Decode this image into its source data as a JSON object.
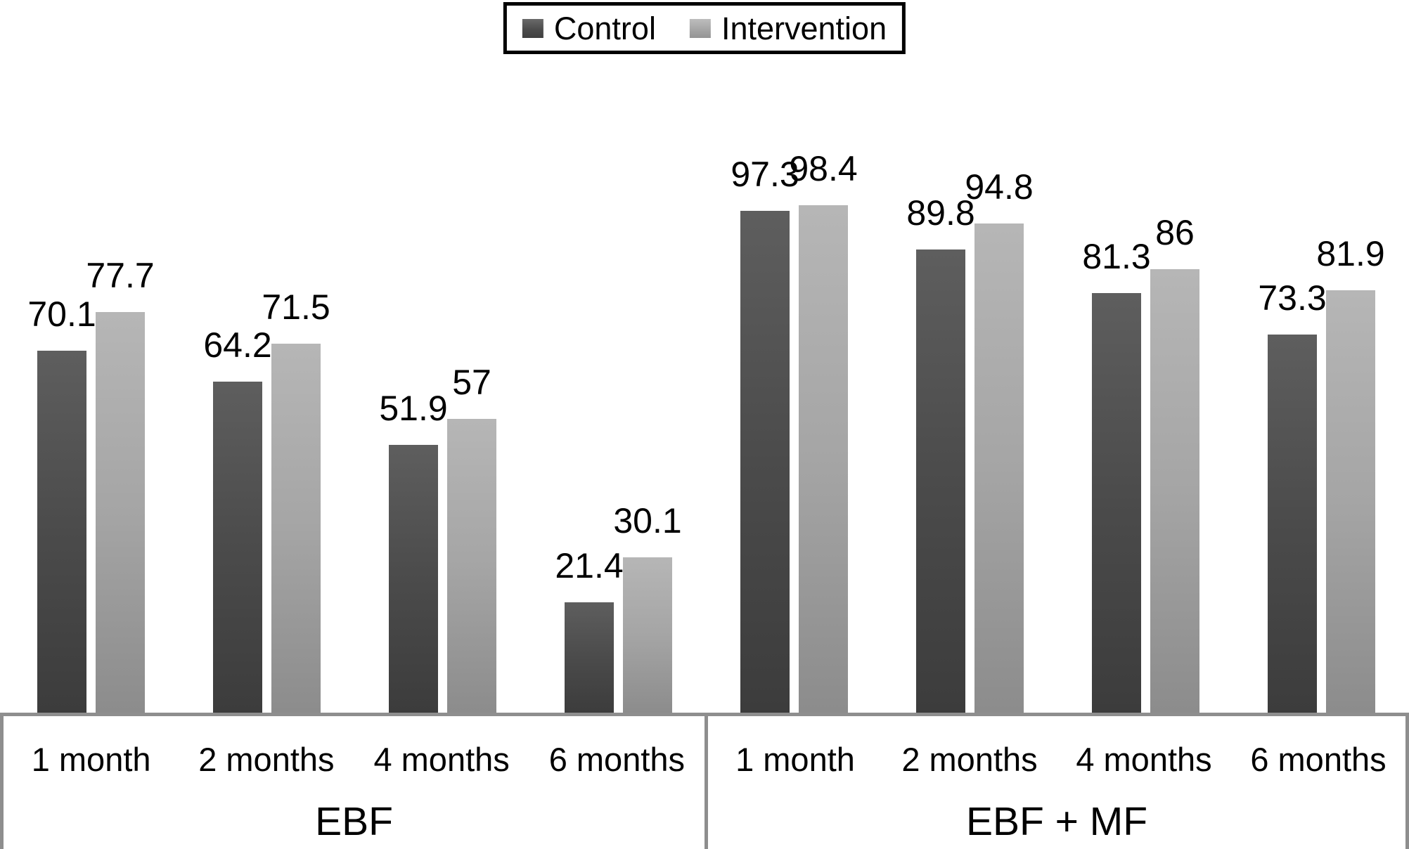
{
  "legend": {
    "position": "top-center",
    "items": [
      {
        "label": "Control",
        "series": "control",
        "swatch_color": "#4c4c4c"
      },
      {
        "label": "Intervention",
        "series": "intervention",
        "swatch_color": "#a6a6a6"
      }
    ]
  },
  "chart_data": {
    "type": "bar",
    "title": "",
    "xlabel": "",
    "ylabel": "",
    "ylim": [
      0,
      110
    ],
    "grid": false,
    "y_axis_visible": false,
    "value_labels": true,
    "legend_position": "top",
    "colors": {
      "control": "#4c4c4c",
      "intervention": "#a6a6a6"
    },
    "groups": [
      {
        "label": "EBF",
        "categories": [
          "1 month",
          "2 months",
          "4 months",
          "6 months"
        ],
        "series": [
          {
            "name": "Control",
            "values": [
              70.1,
              64.2,
              51.9,
              21.4
            ]
          },
          {
            "name": "Intervention",
            "values": [
              77.7,
              71.5,
              57,
              30.1
            ]
          }
        ]
      },
      {
        "label": "EBF + MF",
        "categories": [
          "1 month",
          "2 months",
          "4 months",
          "6 months"
        ],
        "series": [
          {
            "name": "Control",
            "values": [
              97.3,
              89.8,
              81.3,
              73.3
            ]
          },
          {
            "name": "Intervention",
            "values": [
              98.4,
              94.8,
              86,
              81.9
            ]
          }
        ]
      }
    ]
  }
}
